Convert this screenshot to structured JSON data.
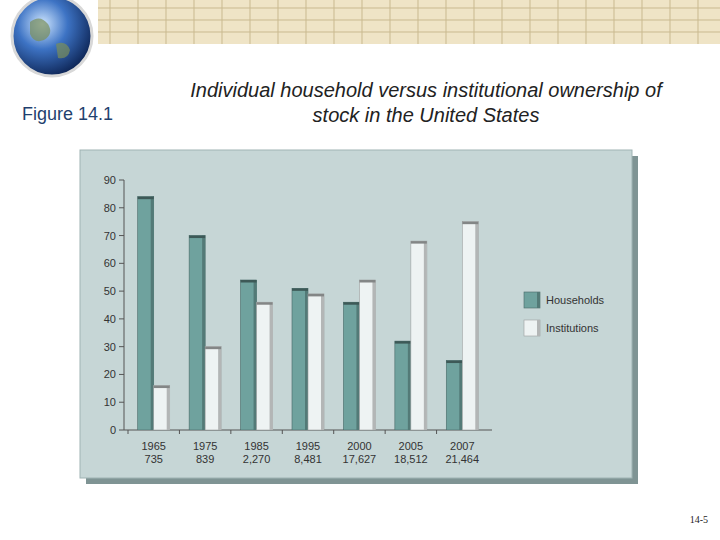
{
  "header": {
    "figure_label": "Figure 14.1"
  },
  "footer": {
    "page": "14-5"
  },
  "chart_data": {
    "type": "bar",
    "title": "Individual household versus institutional ownership of stock in the United States",
    "categories": [
      "1965",
      "1975",
      "1985",
      "1995",
      "2000",
      "2005",
      "2007"
    ],
    "category_sublabels": [
      "735",
      "839",
      "2,270",
      "8,481",
      "17,627",
      "18,512",
      "21,464"
    ],
    "series": [
      {
        "name": "Households",
        "color": "#6fa29e",
        "values": [
          84,
          70,
          54,
          51,
          46,
          32,
          25
        ]
      },
      {
        "name": "Institutions",
        "color": "#eef3f3",
        "values": [
          16,
          30,
          46,
          49,
          54,
          68,
          75
        ]
      }
    ],
    "ylim": [
      0,
      90
    ],
    "yticks": [
      0,
      10,
      20,
      30,
      40,
      50,
      60,
      70,
      80,
      90
    ],
    "grid": false,
    "legend": "right"
  }
}
